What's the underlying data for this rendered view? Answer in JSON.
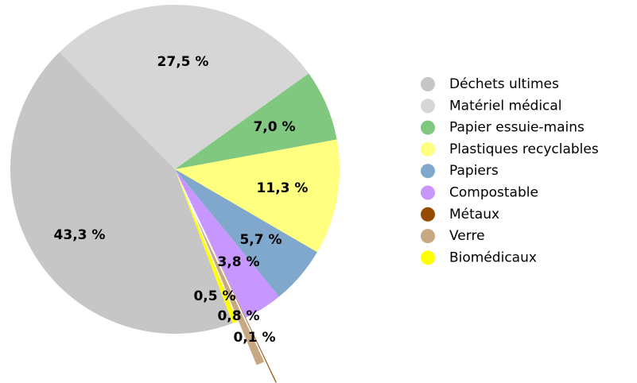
{
  "chart_data": {
    "type": "pie",
    "categories": [
      "Déchets ultimes",
      "Matériel médical",
      "Papier essuie-mains",
      "Plastiques recyclables",
      "Papiers",
      "Compostable",
      "Métaux",
      "Verre",
      "Biomédicaux"
    ],
    "values": [
      43.3,
      27.5,
      7.0,
      11.3,
      5.7,
      3.8,
      0.1,
      0.8,
      0.5
    ],
    "value_labels": [
      "43,3 %",
      "27,5 %",
      "7,0 %",
      "11,3 %",
      "5,7 %",
      "3,8 %",
      "0,1 %",
      "0,8 %",
      "0,5 %"
    ],
    "colors": [
      "#c6c6c6",
      "#d6d6d6",
      "#80c880",
      "#ffff80",
      "#80a8cc",
      "#c896ff",
      "#964b00",
      "#c8a882",
      "#ffff00"
    ],
    "legend": "right"
  }
}
